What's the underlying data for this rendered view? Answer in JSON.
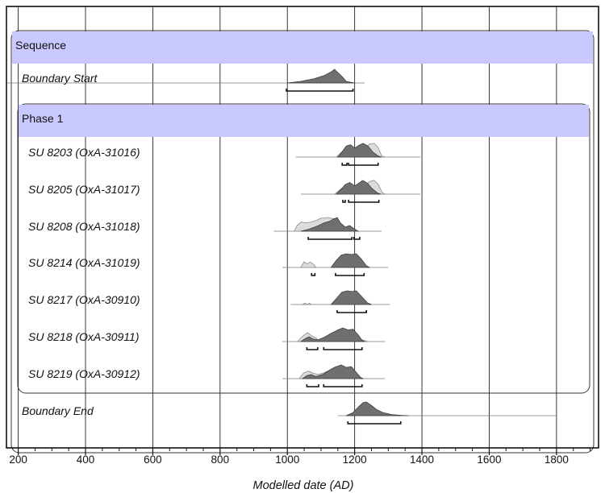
{
  "chart_data": {
    "type": "density",
    "xlabel": "Modelled date (AD)",
    "xlim": [
      165,
      1925
    ],
    "xticks": [
      200,
      400,
      600,
      800,
      1000,
      1200,
      1400,
      1600,
      1800
    ],
    "sequence_label": "Sequence",
    "phase_label": "Phase 1",
    "rows": [
      {
        "label": "Boundary Start",
        "kind": "boundary",
        "line": [
          165,
          1230
        ],
        "posterior": [
          [
            1000,
            0
          ],
          [
            1040,
            0.12
          ],
          [
            1080,
            0.32
          ],
          [
            1110,
            0.55
          ],
          [
            1130,
            0.8
          ],
          [
            1140,
            1.0
          ],
          [
            1155,
            0.65
          ],
          [
            1165,
            0.4
          ],
          [
            1175,
            0.12
          ],
          [
            1200,
            0
          ]
        ],
        "ranges": [
          [
            997,
            1195
          ]
        ]
      },
      {
        "label": "SU 8203 (OxA-31016)",
        "kind": "date",
        "line": [
          1025,
          1395
        ],
        "prior": [
          [
            1145,
            0
          ],
          [
            1165,
            0.45
          ],
          [
            1180,
            0.7
          ],
          [
            1200,
            0.55
          ],
          [
            1215,
            0.4
          ],
          [
            1230,
            0.7
          ],
          [
            1245,
            0.95
          ],
          [
            1258,
            1.0
          ],
          [
            1270,
            0.7
          ],
          [
            1280,
            0.1
          ],
          [
            1290,
            0
          ]
        ],
        "posterior": [
          [
            1150,
            0
          ],
          [
            1162,
            0.35
          ],
          [
            1175,
            0.8
          ],
          [
            1188,
            0.9
          ],
          [
            1200,
            0.65
          ],
          [
            1212,
            0.85
          ],
          [
            1225,
            1.0
          ],
          [
            1240,
            0.8
          ],
          [
            1255,
            0.35
          ],
          [
            1270,
            0.08
          ],
          [
            1280,
            0
          ]
        ],
        "ranges": [
          [
            1163,
            1177
          ],
          [
            1182,
            1270
          ]
        ]
      },
      {
        "label": "SU 8205 (OxA-31017)",
        "kind": "date",
        "line": [
          1040,
          1395
        ],
        "prior": [
          [
            1140,
            0
          ],
          [
            1160,
            0.4
          ],
          [
            1178,
            0.65
          ],
          [
            1198,
            0.55
          ],
          [
            1215,
            0.35
          ],
          [
            1230,
            0.65
          ],
          [
            1245,
            0.92
          ],
          [
            1258,
            1.0
          ],
          [
            1270,
            0.72
          ],
          [
            1282,
            0.12
          ],
          [
            1290,
            0
          ]
        ],
        "posterior": [
          [
            1145,
            0
          ],
          [
            1160,
            0.35
          ],
          [
            1172,
            0.7
          ],
          [
            1186,
            0.85
          ],
          [
            1200,
            0.6
          ],
          [
            1212,
            0.8
          ],
          [
            1224,
            1.0
          ],
          [
            1238,
            0.8
          ],
          [
            1252,
            0.4
          ],
          [
            1268,
            0.08
          ],
          [
            1278,
            0
          ]
        ],
        "ranges": [
          [
            1165,
            1172
          ],
          [
            1182,
            1272
          ]
        ]
      },
      {
        "label": "SU 8208 (OxA-31018)",
        "kind": "date",
        "line": [
          960,
          1280
        ],
        "prior": [
          [
            1020,
            0
          ],
          [
            1030,
            0.45
          ],
          [
            1042,
            0.68
          ],
          [
            1052,
            0.62
          ],
          [
            1070,
            0.65
          ],
          [
            1085,
            0.78
          ],
          [
            1100,
            0.95
          ],
          [
            1120,
            1.0
          ],
          [
            1140,
            0.9
          ],
          [
            1155,
            0.45
          ],
          [
            1168,
            0.18
          ],
          [
            1180,
            0.25
          ],
          [
            1192,
            0.12
          ],
          [
            1200,
            0
          ]
        ],
        "posterior": [
          [
            1040,
            0
          ],
          [
            1065,
            0.15
          ],
          [
            1090,
            0.38
          ],
          [
            1110,
            0.62
          ],
          [
            1125,
            0.72
          ],
          [
            1138,
            0.9
          ],
          [
            1148,
            1.0
          ],
          [
            1158,
            0.6
          ],
          [
            1172,
            0.3
          ],
          [
            1185,
            0.42
          ],
          [
            1198,
            0.18
          ],
          [
            1210,
            0
          ]
        ],
        "ranges": [
          [
            1062,
            1192
          ],
          [
            1198,
            1215
          ]
        ]
      },
      {
        "label": "SU 8214 (OxA-31019)",
        "kind": "date",
        "line": [
          985,
          1300
        ],
        "prior": [
          [
            1040,
            0
          ],
          [
            1050,
            0.42
          ],
          [
            1058,
            0.25
          ],
          [
            1068,
            0.4
          ],
          [
            1078,
            0.22
          ],
          [
            1085,
            0
          ]
        ],
        "posterior": [
          [
            1130,
            0
          ],
          [
            1145,
            0.5
          ],
          [
            1160,
            0.9
          ],
          [
            1175,
            1.0
          ],
          [
            1190,
            0.95
          ],
          [
            1205,
            1.0
          ],
          [
            1220,
            0.6
          ],
          [
            1235,
            0.12
          ],
          [
            1245,
            0
          ]
        ],
        "ranges": [
          [
            1072,
            1082
          ],
          [
            1143,
            1228
          ]
        ]
      },
      {
        "label": "SU 8217 (OxA-30910)",
        "kind": "date",
        "line": [
          1010,
          1305
        ],
        "prior": [
          [
            1045,
            0
          ],
          [
            1052,
            0.1
          ],
          [
            1060,
            0
          ],
          [
            1065,
            0.1
          ],
          [
            1072,
            0
          ]
        ],
        "posterior": [
          [
            1130,
            0
          ],
          [
            1148,
            0.5
          ],
          [
            1162,
            0.9
          ],
          [
            1178,
            1.0
          ],
          [
            1192,
            0.95
          ],
          [
            1205,
            1.0
          ],
          [
            1222,
            0.55
          ],
          [
            1238,
            0.12
          ],
          [
            1250,
            0
          ]
        ],
        "ranges": [
          [
            1148,
            1235
          ]
        ]
      },
      {
        "label": "SU 8218 (OxA-30911)",
        "kind": "date",
        "line": [
          985,
          1290
        ],
        "prior": [
          [
            1030,
            0
          ],
          [
            1045,
            0.38
          ],
          [
            1060,
            0.65
          ],
          [
            1072,
            0.42
          ],
          [
            1082,
            0.3
          ],
          [
            1092,
            0.12
          ],
          [
            1110,
            0.25
          ],
          [
            1130,
            0.55
          ],
          [
            1150,
            0.68
          ],
          [
            1170,
            0.6
          ],
          [
            1190,
            0.5
          ],
          [
            1208,
            0.3
          ],
          [
            1225,
            0.1
          ],
          [
            1240,
            0
          ]
        ],
        "posterior": [
          [
            1040,
            0
          ],
          [
            1055,
            0.25
          ],
          [
            1065,
            0.35
          ],
          [
            1075,
            0.2
          ],
          [
            1090,
            0.12
          ],
          [
            1110,
            0.32
          ],
          [
            1130,
            0.6
          ],
          [
            1150,
            0.85
          ],
          [
            1165,
            1.0
          ],
          [
            1180,
            0.85
          ],
          [
            1195,
            0.9
          ],
          [
            1210,
            0.5
          ],
          [
            1222,
            0.1
          ],
          [
            1230,
            0
          ]
        ],
        "ranges": [
          [
            1058,
            1090
          ],
          [
            1108,
            1222
          ]
        ]
      },
      {
        "label": "SU 8219 (OxA-30912)",
        "kind": "date",
        "line": [
          985,
          1290
        ],
        "prior": [
          [
            1035,
            0
          ],
          [
            1048,
            0.4
          ],
          [
            1062,
            0.55
          ],
          [
            1075,
            0.42
          ],
          [
            1090,
            0.3
          ],
          [
            1108,
            0.42
          ],
          [
            1125,
            0.6
          ],
          [
            1145,
            0.72
          ],
          [
            1160,
            0.62
          ],
          [
            1178,
            0.52
          ],
          [
            1195,
            0.35
          ],
          [
            1212,
            0.15
          ],
          [
            1225,
            0
          ]
        ],
        "posterior": [
          [
            1045,
            0
          ],
          [
            1058,
            0.22
          ],
          [
            1070,
            0.3
          ],
          [
            1085,
            0.15
          ],
          [
            1105,
            0.3
          ],
          [
            1125,
            0.62
          ],
          [
            1142,
            0.85
          ],
          [
            1160,
            1.0
          ],
          [
            1175,
            0.82
          ],
          [
            1190,
            0.88
          ],
          [
            1205,
            0.45
          ],
          [
            1218,
            0.08
          ],
          [
            1225,
            0
          ]
        ],
        "ranges": [
          [
            1058,
            1093
          ],
          [
            1108,
            1222
          ]
        ]
      },
      {
        "label": "Boundary End",
        "kind": "boundary",
        "line": [
          1150,
          1800
        ],
        "posterior": [
          [
            1175,
            0
          ],
          [
            1195,
            0.22
          ],
          [
            1212,
            0.65
          ],
          [
            1225,
            0.95
          ],
          [
            1235,
            1.0
          ],
          [
            1250,
            0.75
          ],
          [
            1265,
            0.45
          ],
          [
            1285,
            0.22
          ],
          [
            1310,
            0.08
          ],
          [
            1340,
            0.02
          ],
          [
            1360,
            0
          ]
        ],
        "ranges": [
          [
            1180,
            1337
          ]
        ]
      }
    ]
  }
}
